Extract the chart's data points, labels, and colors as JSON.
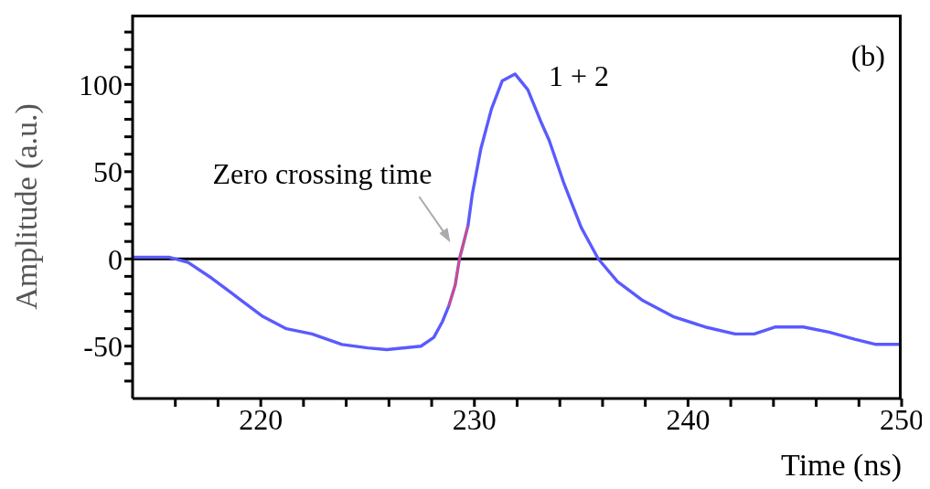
{
  "chart_data": {
    "type": "line",
    "xlabel": "Time (ns)",
    "ylabel": "Amplitude (a.u.)",
    "xlim": [
      214,
      250
    ],
    "ylim": [
      -80,
      140
    ],
    "xticks": [
      {
        "value": 216,
        "label": null
      },
      {
        "value": 218,
        "label": null
      },
      220,
      {
        "value": 222,
        "label": null
      },
      {
        "value": 224,
        "label": null
      },
      {
        "value": 226,
        "label": null
      },
      {
        "value": 228,
        "label": null
      },
      230,
      {
        "value": 232,
        "label": null
      },
      {
        "value": 234,
        "label": null
      },
      {
        "value": 236,
        "label": null
      },
      {
        "value": 238,
        "label": null
      },
      240,
      {
        "value": 242,
        "label": null
      },
      {
        "value": 244,
        "label": null
      },
      {
        "value": 246,
        "label": null
      },
      {
        "value": 248,
        "label": null
      },
      250
    ],
    "yticks": [
      {
        "value": -70,
        "label": null
      },
      {
        "value": -60,
        "label": null
      },
      -50,
      {
        "value": -40,
        "label": null
      },
      {
        "value": -30,
        "label": null
      },
      {
        "value": -20,
        "label": null
      },
      {
        "value": -10,
        "label": null
      },
      0,
      {
        "value": 10,
        "label": null
      },
      {
        "value": 20,
        "label": null
      },
      {
        "value": 30,
        "label": null
      },
      {
        "value": 40,
        "label": null
      },
      50,
      {
        "value": 60,
        "label": null
      },
      {
        "value": 70,
        "label": null
      },
      {
        "value": 80,
        "label": null
      },
      {
        "value": 90,
        "label": null
      },
      100,
      {
        "value": 110,
        "label": null
      },
      {
        "value": 120,
        "label": null
      },
      {
        "value": 130,
        "label": null
      }
    ],
    "grid": false,
    "legend": false,
    "marker": "none",
    "line_style": "solid",
    "ref_lines": [
      {
        "axis": "y",
        "value": 0,
        "color": "#000000"
      }
    ],
    "annotations": [
      {
        "text": "Zero crossing time",
        "x": 229.3,
        "y": 0
      },
      "1 + 2",
      "(b)"
    ],
    "series": [
      {
        "color": "#5a5aff",
        "x": [
          214,
          215.7,
          216.6,
          217.7,
          218.9,
          220.1,
          221.2,
          222.4,
          223.8,
          225,
          225.9,
          227.5,
          228.1,
          228.5,
          228.8,
          229.1,
          229.3,
          229.7,
          229.9,
          230.3,
          230.8,
          231.3,
          231.9,
          232.5,
          233.1,
          233.5,
          234.2,
          235,
          235.8,
          236.7,
          237.9,
          239.3,
          240.8,
          242.2,
          243.1,
          244.1,
          245.4,
          246.6,
          247.8,
          248.8,
          250
        ],
        "values": [
          1,
          1,
          -2,
          -11,
          -22,
          -33,
          -40,
          -43,
          -49,
          -51,
          -52,
          -50,
          -45,
          -36,
          -27,
          -15,
          0,
          19,
          37,
          63,
          86,
          102,
          106,
          97,
          79,
          68,
          43,
          18,
          0,
          -13,
          -24,
          -33,
          -39,
          -43,
          -43,
          -39,
          -39,
          -42,
          -46,
          -49,
          -49
        ]
      },
      {
        "color": "#f04468",
        "x": [
          228.8,
          229.1,
          229.3,
          229.7
        ],
        "values": [
          -27,
          -15,
          0,
          19
        ]
      }
    ]
  }
}
